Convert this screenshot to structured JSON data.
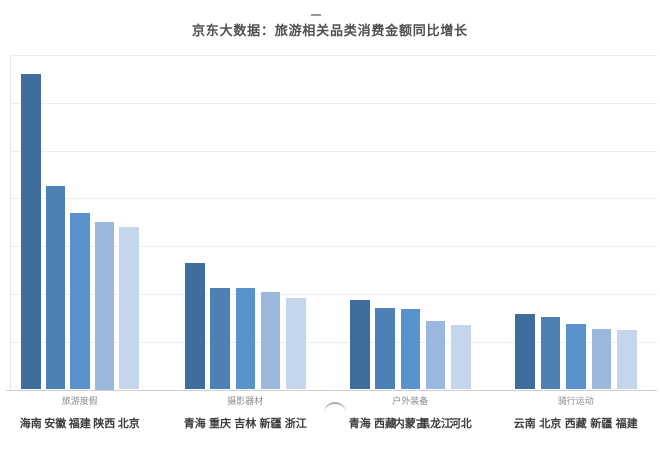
{
  "title": "京东大数据：旅游相关品类消费金额同比增长",
  "legend_dash": "-",
  "colors": {
    "background": "#ffffff",
    "title_text": "#4f4f4f",
    "group_label_text": "#8c8c8c",
    "category_label_text": "#3d3d3d",
    "gridline": "#ededed",
    "axis_line": "#cfcfcf",
    "bar_palette": [
      "#3f6e9e",
      "#4d80b5",
      "#5992cd",
      "#9ab8de",
      "#c5d5ec"
    ]
  },
  "chart_data": {
    "type": "bar",
    "title": "京东大数据：旅游相关品类消费金额同比增长",
    "xlabel": "",
    "ylabel": "",
    "ylim": [
      0,
      7
    ],
    "gridline_step": 1,
    "grid": true,
    "y_tick_labels_visible": false,
    "legend_position": "none",
    "note": "values estimated in gridline units; no numeric axis labels shown in image",
    "groups": [
      {
        "label": "旅游度假",
        "categories": [
          "海南",
          "安徽",
          "福建",
          "陕西",
          "北京"
        ],
        "values": [
          6.6,
          4.25,
          3.7,
          3.5,
          3.4
        ]
      },
      {
        "label": "摄影器材",
        "categories": [
          "青海",
          "重庆",
          "吉林",
          "新疆",
          "浙江"
        ],
        "values": [
          2.64,
          2.12,
          2.12,
          2.05,
          1.91
        ]
      },
      {
        "label": "户外装备",
        "categories": [
          "青海",
          "西藏",
          "内蒙古",
          "黑龙江",
          "河北"
        ],
        "values": [
          1.87,
          1.7,
          1.68,
          1.43,
          1.36
        ]
      },
      {
        "label": "骑行运动",
        "categories": [
          "云南",
          "北京",
          "西藏",
          "新疆",
          "福建"
        ],
        "values": [
          1.59,
          1.51,
          1.38,
          1.26,
          1.24
        ]
      }
    ]
  }
}
